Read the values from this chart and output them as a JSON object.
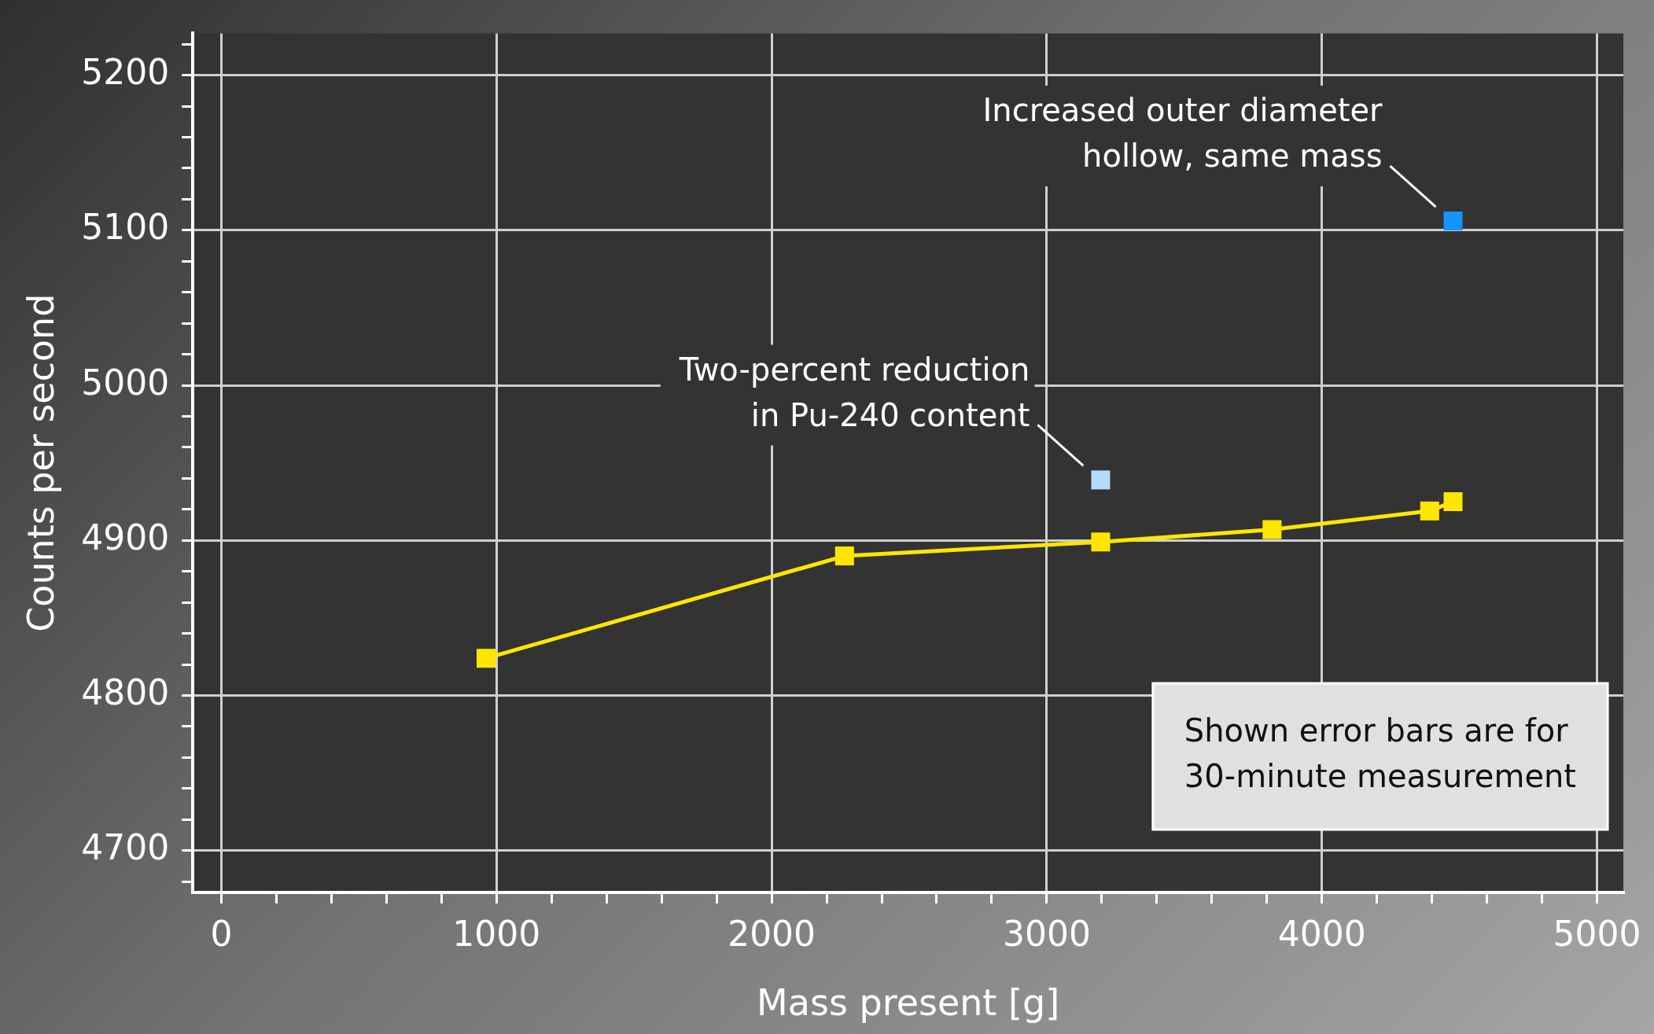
{
  "chart_data": {
    "type": "scatter",
    "xlabel": "Mass present [g]",
    "ylabel": "Counts per second",
    "xlim": [
      -104,
      5096
    ],
    "ylim": [
      4673,
      5227
    ],
    "xticks": [
      0,
      {
        "value": 200,
        "label": null
      },
      {
        "value": 400,
        "label": null
      },
      {
        "value": 600,
        "label": null
      },
      {
        "value": 800,
        "label": null
      },
      1000,
      {
        "value": 1200,
        "label": null
      },
      {
        "value": 1400,
        "label": null
      },
      {
        "value": 1600,
        "label": null
      },
      {
        "value": 1800,
        "label": null
      },
      2000,
      {
        "value": 2200,
        "label": null
      },
      {
        "value": 2400,
        "label": null
      },
      {
        "value": 2600,
        "label": null
      },
      {
        "value": 2800,
        "label": null
      },
      3000,
      {
        "value": 3200,
        "label": null
      },
      {
        "value": 3400,
        "label": null
      },
      {
        "value": 3600,
        "label": null
      },
      {
        "value": 3800,
        "label": null
      },
      4000,
      {
        "value": 4200,
        "label": null
      },
      {
        "value": 4400,
        "label": null
      },
      {
        "value": 4600,
        "label": null
      },
      {
        "value": 4800,
        "label": null
      },
      5000
    ],
    "yticks": [
      {
        "value": 4680,
        "label": null
      },
      4700,
      {
        "value": 4720,
        "label": null
      },
      {
        "value": 4740,
        "label": null
      },
      {
        "value": 4760,
        "label": null
      },
      {
        "value": 4780,
        "label": null
      },
      4800,
      {
        "value": 4820,
        "label": null
      },
      {
        "value": 4840,
        "label": null
      },
      {
        "value": 4860,
        "label": null
      },
      {
        "value": 4880,
        "label": null
      },
      4900,
      {
        "value": 4920,
        "label": null
      },
      {
        "value": 4940,
        "label": null
      },
      {
        "value": 4960,
        "label": null
      },
      {
        "value": 4980,
        "label": null
      },
      5000,
      {
        "value": 5020,
        "label": null
      },
      {
        "value": 5040,
        "label": null
      },
      {
        "value": 5060,
        "label": null
      },
      {
        "value": 5080,
        "label": null
      },
      5100,
      {
        "value": 5120,
        "label": null
      },
      {
        "value": 5140,
        "label": null
      },
      {
        "value": 5160,
        "label": null
      },
      {
        "value": 5180,
        "label": null
      },
      5200,
      {
        "value": 5220,
        "label": null
      }
    ],
    "grid": true,
    "marker": "square",
    "legend": false,
    "series": [
      {
        "type": "line",
        "color": "#ffe600",
        "x": [
          962,
          2265,
          3196,
          3819,
          4392,
          4477
        ],
        "values": [
          4824,
          4890,
          4899,
          4907,
          4919,
          4925
        ]
      },
      {
        "color": "#b3dcff",
        "x": [
          3196
        ],
        "values": [
          4939
        ]
      },
      {
        "color": "#1593ff",
        "x": [
          4477
        ],
        "values": [
          5106
        ]
      }
    ],
    "annotations": [
      {
        "text": "Two-percent reduction\nin Pu-240 content",
        "x": 3196,
        "y": 4939
      },
      {
        "text": "Increased outer diameter\nhollow, same mass",
        "x": 4477,
        "y": 5106
      },
      "Shown error bars are for\n30-minute measurement"
    ]
  }
}
